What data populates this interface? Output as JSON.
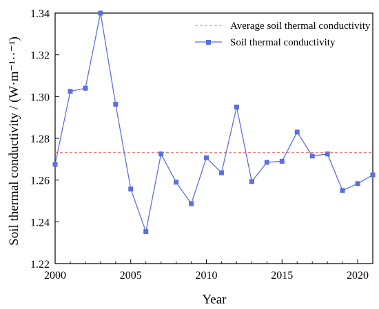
{
  "chart_data": {
    "type": "line",
    "xlabel": "Year",
    "ylabel": "Soil thermal conductivity / (W·m⁻¹··⁻¹)",
    "xlim": [
      2000,
      2021
    ],
    "ylim": [
      1.22,
      1.34
    ],
    "x_ticks": [
      2000,
      2005,
      2010,
      2015,
      2020
    ],
    "y_ticks": [
      1.22,
      1.24,
      1.26,
      1.28,
      1.3,
      1.32,
      1.34
    ],
    "x_tick_labels": [
      "2000",
      "2005",
      "2010",
      "2015",
      "2020"
    ],
    "y_tick_labels": [
      "1.22",
      "1.24",
      "1.26",
      "1.28",
      "1.30",
      "1.32",
      "1.34"
    ],
    "grid": false,
    "legend_position": "top-right",
    "x": [
      2000,
      2001,
      2002,
      2003,
      2004,
      2005,
      2006,
      2007,
      2008,
      2009,
      2010,
      2011,
      2012,
      2013,
      2014,
      2015,
      2016,
      2017,
      2018,
      2019,
      2020,
      2021
    ],
    "series": [
      {
        "name": "Soil thermal conductivity",
        "color": "#5b6fe0",
        "marker": "square",
        "values": [
          1.2675,
          1.3025,
          1.304,
          1.34,
          1.2963,
          1.2557,
          1.2353,
          1.2725,
          1.259,
          1.2487,
          1.2707,
          1.2635,
          1.295,
          1.2593,
          1.2685,
          1.269,
          1.283,
          1.2715,
          1.2725,
          1.255,
          1.2583,
          1.2625
        ]
      }
    ],
    "reference_lines": [
      {
        "name": "Average soil thermal conductivity",
        "color": "#e8696b",
        "style": "dashed",
        "y": 1.2733
      }
    ]
  }
}
